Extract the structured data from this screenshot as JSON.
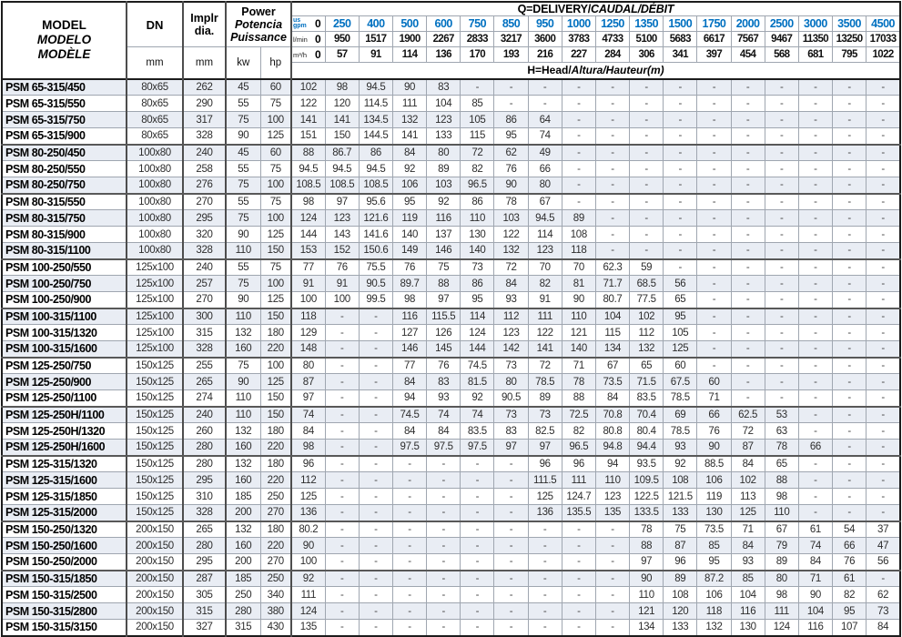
{
  "table": {
    "header": {
      "model_lines": [
        "MODEL",
        "MODELO",
        "MODÈLE"
      ],
      "dn_label": "DN",
      "dn_unit": "mm",
      "impeller_lines": [
        "Implr",
        "dia."
      ],
      "impeller_unit": "mm",
      "power_lines": [
        "Power",
        "Potencia",
        "Puissance"
      ],
      "power_unit_kw": "kw",
      "power_unit_hp": "hp",
      "q_title_plain": "Q=DELIVERY/",
      "q_title_italic": "CAUDAL/DÉBIT",
      "h_title_plain": "H=Head/",
      "h_title_italic": "Altura/Hauteur",
      "h_title_unit": "(m)",
      "flow_unit_gpm_line1": "us",
      "flow_unit_gpm_line2": "gpm",
      "flow_unit_lmin": "l/min",
      "flow_unit_m3h": "m³/h",
      "gpm": [
        "0",
        "250",
        "400",
        "500",
        "600",
        "750",
        "850",
        "950",
        "1000",
        "1250",
        "1350",
        "1500",
        "1750",
        "2000",
        "2500",
        "3000",
        "3500",
        "4500"
      ],
      "lmin": [
        "0",
        "950",
        "1517",
        "1900",
        "2267",
        "2833",
        "3217",
        "3600",
        "3783",
        "4733",
        "5100",
        "5683",
        "6617",
        "7567",
        "9467",
        "11350",
        "13250",
        "17033"
      ],
      "m3h": [
        "0",
        "57",
        "91",
        "114",
        "136",
        "170",
        "193",
        "216",
        "227",
        "284",
        "306",
        "341",
        "397",
        "454",
        "568",
        "681",
        "795",
        "1022"
      ]
    },
    "rows": [
      {
        "model": "PSM 65-315/450",
        "dn": "80x65",
        "dia": "262",
        "kw": "45",
        "hp": "60",
        "h": [
          "102",
          "98",
          "94.5",
          "90",
          "83",
          "-",
          "-",
          "-",
          "-",
          "-",
          "-",
          "-",
          "-",
          "-",
          "-",
          "-",
          "-",
          "-"
        ]
      },
      {
        "model": "PSM 65-315/550",
        "dn": "80x65",
        "dia": "290",
        "kw": "55",
        "hp": "75",
        "h": [
          "122",
          "120",
          "114.5",
          "111",
          "104",
          "85",
          "-",
          "-",
          "-",
          "-",
          "-",
          "-",
          "-",
          "-",
          "-",
          "-",
          "-",
          "-"
        ]
      },
      {
        "model": "PSM 65-315/750",
        "dn": "80x65",
        "dia": "317",
        "kw": "75",
        "hp": "100",
        "h": [
          "141",
          "141",
          "134.5",
          "132",
          "123",
          "105",
          "86",
          "64",
          "-",
          "-",
          "-",
          "-",
          "-",
          "-",
          "-",
          "-",
          "-",
          "-"
        ]
      },
      {
        "model": "PSM 65-315/900",
        "dn": "80x65",
        "dia": "328",
        "kw": "90",
        "hp": "125",
        "h": [
          "151",
          "150",
          "144.5",
          "141",
          "133",
          "115",
          "95",
          "74",
          "-",
          "-",
          "-",
          "-",
          "-",
          "-",
          "-",
          "-",
          "-",
          "-"
        ]
      },
      {
        "model": "PSM 80-250/450",
        "dn": "100x80",
        "dia": "240",
        "kw": "45",
        "hp": "60",
        "h": [
          "88",
          "86.7",
          "86",
          "84",
          "80",
          "72",
          "62",
          "49",
          "-",
          "-",
          "-",
          "-",
          "-",
          "-",
          "-",
          "-",
          "-",
          "-"
        ]
      },
      {
        "model": "PSM 80-250/550",
        "dn": "100x80",
        "dia": "258",
        "kw": "55",
        "hp": "75",
        "h": [
          "94.5",
          "94.5",
          "94.5",
          "92",
          "89",
          "82",
          "76",
          "66",
          "-",
          "-",
          "-",
          "-",
          "-",
          "-",
          "-",
          "-",
          "-",
          "-"
        ]
      },
      {
        "model": "PSM 80-250/750",
        "dn": "100x80",
        "dia": "276",
        "kw": "75",
        "hp": "100",
        "h": [
          "108.5",
          "108.5",
          "108.5",
          "106",
          "103",
          "96.5",
          "90",
          "80",
          "-",
          "-",
          "-",
          "-",
          "-",
          "-",
          "-",
          "-",
          "-",
          "-"
        ]
      },
      {
        "model": "PSM 80-315/550",
        "dn": "100x80",
        "dia": "270",
        "kw": "55",
        "hp": "75",
        "h": [
          "98",
          "97",
          "95.6",
          "95",
          "92",
          "86",
          "78",
          "67",
          "-",
          "-",
          "-",
          "-",
          "-",
          "-",
          "-",
          "-",
          "-",
          "-"
        ]
      },
      {
        "model": "PSM 80-315/750",
        "dn": "100x80",
        "dia": "295",
        "kw": "75",
        "hp": "100",
        "h": [
          "124",
          "123",
          "121.6",
          "119",
          "116",
          "110",
          "103",
          "94.5",
          "89",
          "-",
          "-",
          "-",
          "-",
          "-",
          "-",
          "-",
          "-",
          "-"
        ]
      },
      {
        "model": "PSM 80-315/900",
        "dn": "100x80",
        "dia": "320",
        "kw": "90",
        "hp": "125",
        "h": [
          "144",
          "143",
          "141.6",
          "140",
          "137",
          "130",
          "122",
          "114",
          "108",
          "-",
          "-",
          "-",
          "-",
          "-",
          "-",
          "-",
          "-",
          "-"
        ]
      },
      {
        "model": "PSM 80-315/1100",
        "dn": "100x80",
        "dia": "328",
        "kw": "110",
        "hp": "150",
        "h": [
          "153",
          "152",
          "150.6",
          "149",
          "146",
          "140",
          "132",
          "123",
          "118",
          "-",
          "-",
          "-",
          "-",
          "-",
          "-",
          "-",
          "-",
          "-"
        ]
      },
      {
        "model": "PSM 100-250/550",
        "dn": "125x100",
        "dia": "240",
        "kw": "55",
        "hp": "75",
        "h": [
          "77",
          "76",
          "75.5",
          "76",
          "75",
          "73",
          "72",
          "70",
          "70",
          "62.3",
          "59",
          "-",
          "-",
          "-",
          "-",
          "-",
          "-",
          "-"
        ]
      },
      {
        "model": "PSM 100-250/750",
        "dn": "125x100",
        "dia": "257",
        "kw": "75",
        "hp": "100",
        "h": [
          "91",
          "91",
          "90.5",
          "89.7",
          "88",
          "86",
          "84",
          "82",
          "81",
          "71.7",
          "68.5",
          "56",
          "-",
          "-",
          "-",
          "-",
          "-",
          "-"
        ]
      },
      {
        "model": "PSM 100-250/900",
        "dn": "125x100",
        "dia": "270",
        "kw": "90",
        "hp": "125",
        "h": [
          "100",
          "100",
          "99.5",
          "98",
          "97",
          "95",
          "93",
          "91",
          "90",
          "80.7",
          "77.5",
          "65",
          "-",
          "-",
          "-",
          "-",
          "-",
          "-"
        ]
      },
      {
        "model": "PSM 100-315/1100",
        "dn": "125x100",
        "dia": "300",
        "kw": "110",
        "hp": "150",
        "h": [
          "118",
          "-",
          "-",
          "116",
          "115.5",
          "114",
          "112",
          "111",
          "110",
          "104",
          "102",
          "95",
          "-",
          "-",
          "-",
          "-",
          "-",
          "-"
        ]
      },
      {
        "model": "PSM 100-315/1320",
        "dn": "125x100",
        "dia": "315",
        "kw": "132",
        "hp": "180",
        "h": [
          "129",
          "-",
          "-",
          "127",
          "126",
          "124",
          "123",
          "122",
          "121",
          "115",
          "112",
          "105",
          "-",
          "-",
          "-",
          "-",
          "-",
          "-"
        ]
      },
      {
        "model": "PSM 100-315/1600",
        "dn": "125x100",
        "dia": "328",
        "kw": "160",
        "hp": "220",
        "h": [
          "148",
          "-",
          "-",
          "146",
          "145",
          "144",
          "142",
          "141",
          "140",
          "134",
          "132",
          "125",
          "-",
          "-",
          "-",
          "-",
          "-",
          "-"
        ]
      },
      {
        "model": "PSM 125-250/750",
        "dn": "150x125",
        "dia": "255",
        "kw": "75",
        "hp": "100",
        "h": [
          "80",
          "-",
          "-",
          "77",
          "76",
          "74.5",
          "73",
          "72",
          "71",
          "67",
          "65",
          "60",
          "-",
          "-",
          "-",
          "-",
          "-",
          "-"
        ]
      },
      {
        "model": "PSM 125-250/900",
        "dn": "150x125",
        "dia": "265",
        "kw": "90",
        "hp": "125",
        "h": [
          "87",
          "-",
          "-",
          "84",
          "83",
          "81.5",
          "80",
          "78.5",
          "78",
          "73.5",
          "71.5",
          "67.5",
          "60",
          "-",
          "-",
          "-",
          "-",
          "-"
        ]
      },
      {
        "model": "PSM 125-250/1100",
        "dn": "150x125",
        "dia": "274",
        "kw": "110",
        "hp": "150",
        "h": [
          "97",
          "-",
          "-",
          "94",
          "93",
          "92",
          "90.5",
          "89",
          "88",
          "84",
          "83.5",
          "78.5",
          "71",
          "-",
          "-",
          "-",
          "-",
          "-"
        ]
      },
      {
        "model": "PSM 125-250H/1100",
        "dn": "150x125",
        "dia": "240",
        "kw": "110",
        "hp": "150",
        "h": [
          "74",
          "-",
          "-",
          "74.5",
          "74",
          "74",
          "73",
          "73",
          "72.5",
          "70.8",
          "70.4",
          "69",
          "66",
          "62.5",
          "53",
          "-",
          "-",
          "-"
        ]
      },
      {
        "model": "PSM 125-250H/1320",
        "dn": "150x125",
        "dia": "260",
        "kw": "132",
        "hp": "180",
        "h": [
          "84",
          "-",
          "-",
          "84",
          "84",
          "83.5",
          "83",
          "82.5",
          "82",
          "80.8",
          "80.4",
          "78.5",
          "76",
          "72",
          "63",
          "-",
          "-",
          "-"
        ]
      },
      {
        "model": "PSM 125-250H/1600",
        "dn": "150x125",
        "dia": "280",
        "kw": "160",
        "hp": "220",
        "h": [
          "98",
          "-",
          "-",
          "97.5",
          "97.5",
          "97.5",
          "97",
          "97",
          "96.5",
          "94.8",
          "94.4",
          "93",
          "90",
          "87",
          "78",
          "66",
          "-",
          "-"
        ]
      },
      {
        "model": "PSM 125-315/1320",
        "dn": "150x125",
        "dia": "280",
        "kw": "132",
        "hp": "180",
        "h": [
          "96",
          "-",
          "-",
          "-",
          "-",
          "-",
          "-",
          "96",
          "96",
          "94",
          "93.5",
          "92",
          "88.5",
          "84",
          "65",
          "-",
          "-",
          "-"
        ]
      },
      {
        "model": "PSM 125-315/1600",
        "dn": "150x125",
        "dia": "295",
        "kw": "160",
        "hp": "220",
        "h": [
          "112",
          "-",
          "-",
          "-",
          "-",
          "-",
          "-",
          "111.5",
          "111",
          "110",
          "109.5",
          "108",
          "106",
          "102",
          "88",
          "-",
          "-",
          "-"
        ]
      },
      {
        "model": "PSM 125-315/1850",
        "dn": "150x125",
        "dia": "310",
        "kw": "185",
        "hp": "250",
        "h": [
          "125",
          "-",
          "-",
          "-",
          "-",
          "-",
          "-",
          "125",
          "124.7",
          "123",
          "122.5",
          "121.5",
          "119",
          "113",
          "98",
          "-",
          "-",
          "-"
        ]
      },
      {
        "model": "PSM 125-315/2000",
        "dn": "150x125",
        "dia": "328",
        "kw": "200",
        "hp": "270",
        "h": [
          "136",
          "-",
          "-",
          "-",
          "-",
          "-",
          "-",
          "136",
          "135.5",
          "135",
          "133.5",
          "133",
          "130",
          "125",
          "110",
          "-",
          "-",
          "-"
        ]
      },
      {
        "model": "PSM 150-250/1320",
        "dn": "200x150",
        "dia": "265",
        "kw": "132",
        "hp": "180",
        "h": [
          "80.2",
          "-",
          "-",
          "-",
          "-",
          "-",
          "-",
          "-",
          "-",
          "-",
          "78",
          "75",
          "73.5",
          "71",
          "67",
          "61",
          "54",
          "37"
        ]
      },
      {
        "model": "PSM 150-250/1600",
        "dn": "200x150",
        "dia": "280",
        "kw": "160",
        "hp": "220",
        "h": [
          "90",
          "-",
          "-",
          "-",
          "-",
          "-",
          "-",
          "-",
          "-",
          "-",
          "88",
          "87",
          "85",
          "84",
          "79",
          "74",
          "66",
          "47"
        ]
      },
      {
        "model": "PSM 150-250/2000",
        "dn": "200x150",
        "dia": "295",
        "kw": "200",
        "hp": "270",
        "h": [
          "100",
          "-",
          "-",
          "-",
          "-",
          "-",
          "-",
          "-",
          "-",
          "-",
          "97",
          "96",
          "95",
          "93",
          "89",
          "84",
          "76",
          "56"
        ]
      },
      {
        "model": "PSM 150-315/1850",
        "dn": "200x150",
        "dia": "287",
        "kw": "185",
        "hp": "250",
        "h": [
          "92",
          "-",
          "-",
          "-",
          "-",
          "-",
          "-",
          "-",
          "-",
          "-",
          "90",
          "89",
          "87.2",
          "85",
          "80",
          "71",
          "61",
          "-"
        ]
      },
      {
        "model": "PSM 150-315/2500",
        "dn": "200x150",
        "dia": "305",
        "kw": "250",
        "hp": "340",
        "h": [
          "111",
          "-",
          "-",
          "-",
          "-",
          "-",
          "-",
          "-",
          "-",
          "-",
          "110",
          "108",
          "106",
          "104",
          "98",
          "90",
          "82",
          "62"
        ]
      },
      {
        "model": "PSM 150-315/2800",
        "dn": "200x150",
        "dia": "315",
        "kw": "280",
        "hp": "380",
        "h": [
          "124",
          "-",
          "-",
          "-",
          "-",
          "-",
          "-",
          "-",
          "-",
          "-",
          "121",
          "120",
          "118",
          "116",
          "111",
          "104",
          "95",
          "73"
        ]
      },
      {
        "model": "PSM 150-315/3150",
        "dn": "200x150",
        "dia": "327",
        "kw": "315",
        "hp": "430",
        "h": [
          "135",
          "-",
          "-",
          "-",
          "-",
          "-",
          "-",
          "-",
          "-",
          "-",
          "134",
          "133",
          "132",
          "130",
          "124",
          "116",
          "107",
          "84"
        ]
      }
    ]
  },
  "colors": {
    "accent_blue": "#0070c0",
    "row_stripe": "#e9edf4",
    "grid_line": "#9fa6b0",
    "frame": "#1c1c1c"
  }
}
